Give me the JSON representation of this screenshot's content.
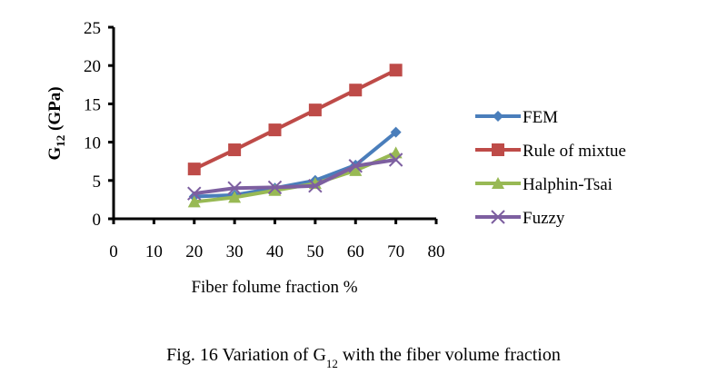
{
  "chart_data": {
    "type": "line",
    "title": "",
    "xlabel": "Fiber folume fraction %",
    "ylabel": "G12 (GPa)",
    "ylabel_main": "G",
    "ylabel_sub": "12",
    "ylabel_unit": " (GPa)",
    "xlim": [
      0,
      80
    ],
    "ylim": [
      0,
      25
    ],
    "xticks": [
      0,
      10,
      20,
      30,
      40,
      50,
      60,
      70,
      80
    ],
    "yticks": [
      0,
      5,
      10,
      15,
      20,
      25
    ],
    "grid": false,
    "legend_position": "right",
    "x": [
      20,
      30,
      40,
      50,
      60,
      70
    ],
    "series": [
      {
        "name": "FEM",
        "marker": "diamond",
        "color": "#4a7ebb",
        "values": [
          2.9,
          3.1,
          4.0,
          5.0,
          7.0,
          11.3
        ]
      },
      {
        "name": "Rule of mixtue",
        "marker": "square",
        "color": "#be4b48",
        "values": [
          6.5,
          9.0,
          11.6,
          14.2,
          16.8,
          19.4
        ]
      },
      {
        "name": "Halphin-Tsai",
        "marker": "triangle",
        "color": "#98b954",
        "values": [
          2.2,
          2.8,
          3.7,
          4.6,
          6.3,
          8.6
        ]
      },
      {
        "name": "Fuzzy",
        "marker": "x",
        "color": "#7d5fa0",
        "values": [
          3.3,
          4.0,
          4.1,
          4.3,
          6.9,
          7.7
        ]
      }
    ]
  },
  "caption": {
    "prefix": "Fig. 16 Variation of G",
    "subscript": "12",
    "suffix": " with the fiber volume fraction"
  }
}
